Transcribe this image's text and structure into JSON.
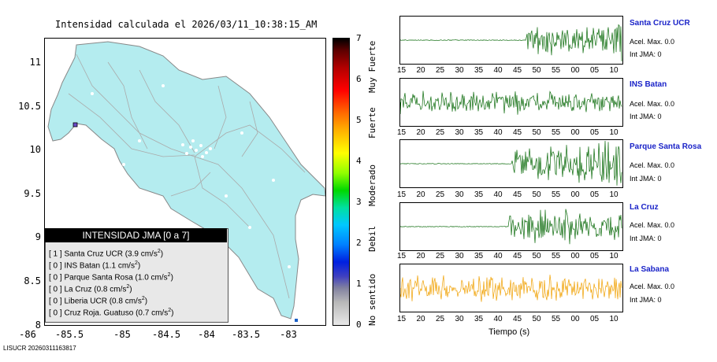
{
  "title": "Intensidad calculada el 2026/03/11_10:38:15_AM",
  "map": {
    "y_ticks": [
      "11",
      "10.5",
      "10",
      "9.5",
      "9",
      "8.5",
      "8"
    ],
    "x_ticks": [
      "-86",
      "-85.5",
      "-85",
      "-84.5",
      "-84",
      "-83.5",
      "-83"
    ],
    "land_color": "#b4ecef",
    "roads_color": "#aaaaaa"
  },
  "legend": {
    "header": "INTENSIDAD JMA [0 a 7]",
    "rows": [
      {
        "level": "[ 1 ]",
        "name": "Santa Cruz UCR",
        "accel": "(3.9 cm/s",
        "unit_exp": "2",
        "close": ")"
      },
      {
        "level": "[ 0 ]",
        "name": "INS Batan",
        "accel": "(1.1 cm/s",
        "unit_exp": "2",
        "close": ")"
      },
      {
        "level": "[ 0 ]",
        "name": "Parque Santa Rosa",
        "accel": "(1.0 cm/s",
        "unit_exp": "2",
        "close": ")"
      },
      {
        "level": "[ 0 ]",
        "name": "La Cruz",
        "accel": "(0.8 cm/s",
        "unit_exp": "2",
        "close": ")"
      },
      {
        "level": "[ 0 ]",
        "name": "Liberia UCR",
        "accel": "(0.8 cm/s",
        "unit_exp": "2",
        "close": ")"
      },
      {
        "level": "[ 0 ]",
        "name": "Cruz Roja. Guatuso",
        "accel": "(0.7 cm/s",
        "unit_exp": "2",
        "close": ")"
      }
    ]
  },
  "colorbar": {
    "numbers": [
      "7",
      "6",
      "5",
      "4",
      "3",
      "2",
      "1",
      "0"
    ],
    "labels": [
      "Muy Fuerte",
      "Fuerte",
      "Moderado",
      "Debil",
      "No sentido"
    ]
  },
  "panels": [
    {
      "station": "Santa Cruz UCR",
      "accel": "Acel. Max. 0.0",
      "intensity": "Int JMA: 0",
      "color": "#0a6a0a"
    },
    {
      "station": "INS Batan",
      "accel": "Acel. Max. 0.0",
      "intensity": "Int JMA: 0",
      "color": "#0a6a0a"
    },
    {
      "station": "Parque Santa Rosa",
      "accel": "Acel. Max. 0.0",
      "intensity": "Int JMA: 0",
      "color": "#0a6a0a"
    },
    {
      "station": "La Cruz",
      "accel": "Acel. Max. 0.0",
      "intensity": "Int JMA: 0",
      "color": "#0a6a0a"
    },
    {
      "station": "La Sabana",
      "accel": "Acel. Max. 0.0",
      "intensity": "Int JMA: 0",
      "color": "#f0a000"
    }
  ],
  "time_ticks": [
    "15",
    "20",
    "25",
    "30",
    "35",
    "40",
    "45",
    "50",
    "55",
    "00",
    "05",
    "10"
  ],
  "xaxis_label": "Tiempo (s)",
  "footer": "LISUCR 20260311163817"
}
